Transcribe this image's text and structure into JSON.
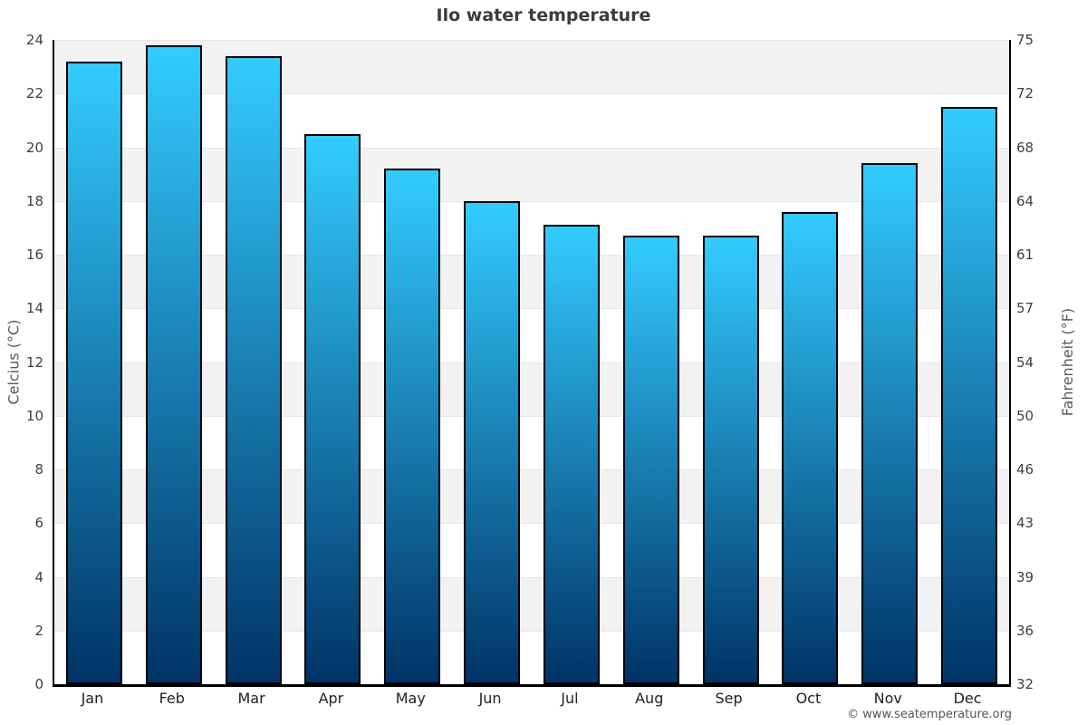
{
  "chart_data": {
    "type": "bar",
    "title": "Ilo water temperature",
    "ylabel_left": "Celcius (°C)",
    "ylabel_right": "Fahrenheit (°F)",
    "categories": [
      "Jan",
      "Feb",
      "Mar",
      "Apr",
      "May",
      "Jun",
      "Jul",
      "Aug",
      "Sep",
      "Oct",
      "Nov",
      "Dec"
    ],
    "values": [
      23.2,
      23.8,
      23.4,
      20.5,
      19.2,
      18.0,
      17.1,
      16.7,
      16.7,
      17.6,
      19.4,
      21.5
    ],
    "unit": "°C",
    "ylim": [
      0,
      24
    ],
    "yticks_celsius": [
      "24",
      "22",
      "20",
      "18",
      "16",
      "14",
      "12",
      "10",
      "8",
      "6",
      "4",
      "2",
      "0"
    ],
    "yticks_fahrenheit": [
      "75",
      "72",
      "68",
      "64",
      "61",
      "57",
      "54",
      "50",
      "46",
      "43",
      "39",
      "36",
      "32"
    ],
    "legend": "none",
    "grid": "alternating-bands",
    "colors": {
      "bar_gradient_top": "#33ccff",
      "bar_gradient_bottom": "#003366",
      "bar_border": "#000000",
      "band_gray": "#f2f2f2",
      "band_white": "#ffffff",
      "gridline": "#e7e7e7",
      "title_text": "#3c3c3c",
      "tick_text": "#3f3f3f",
      "axis_title_text": "#595959"
    }
  },
  "footer": {
    "copyright": "© www.seatemperature.org"
  }
}
